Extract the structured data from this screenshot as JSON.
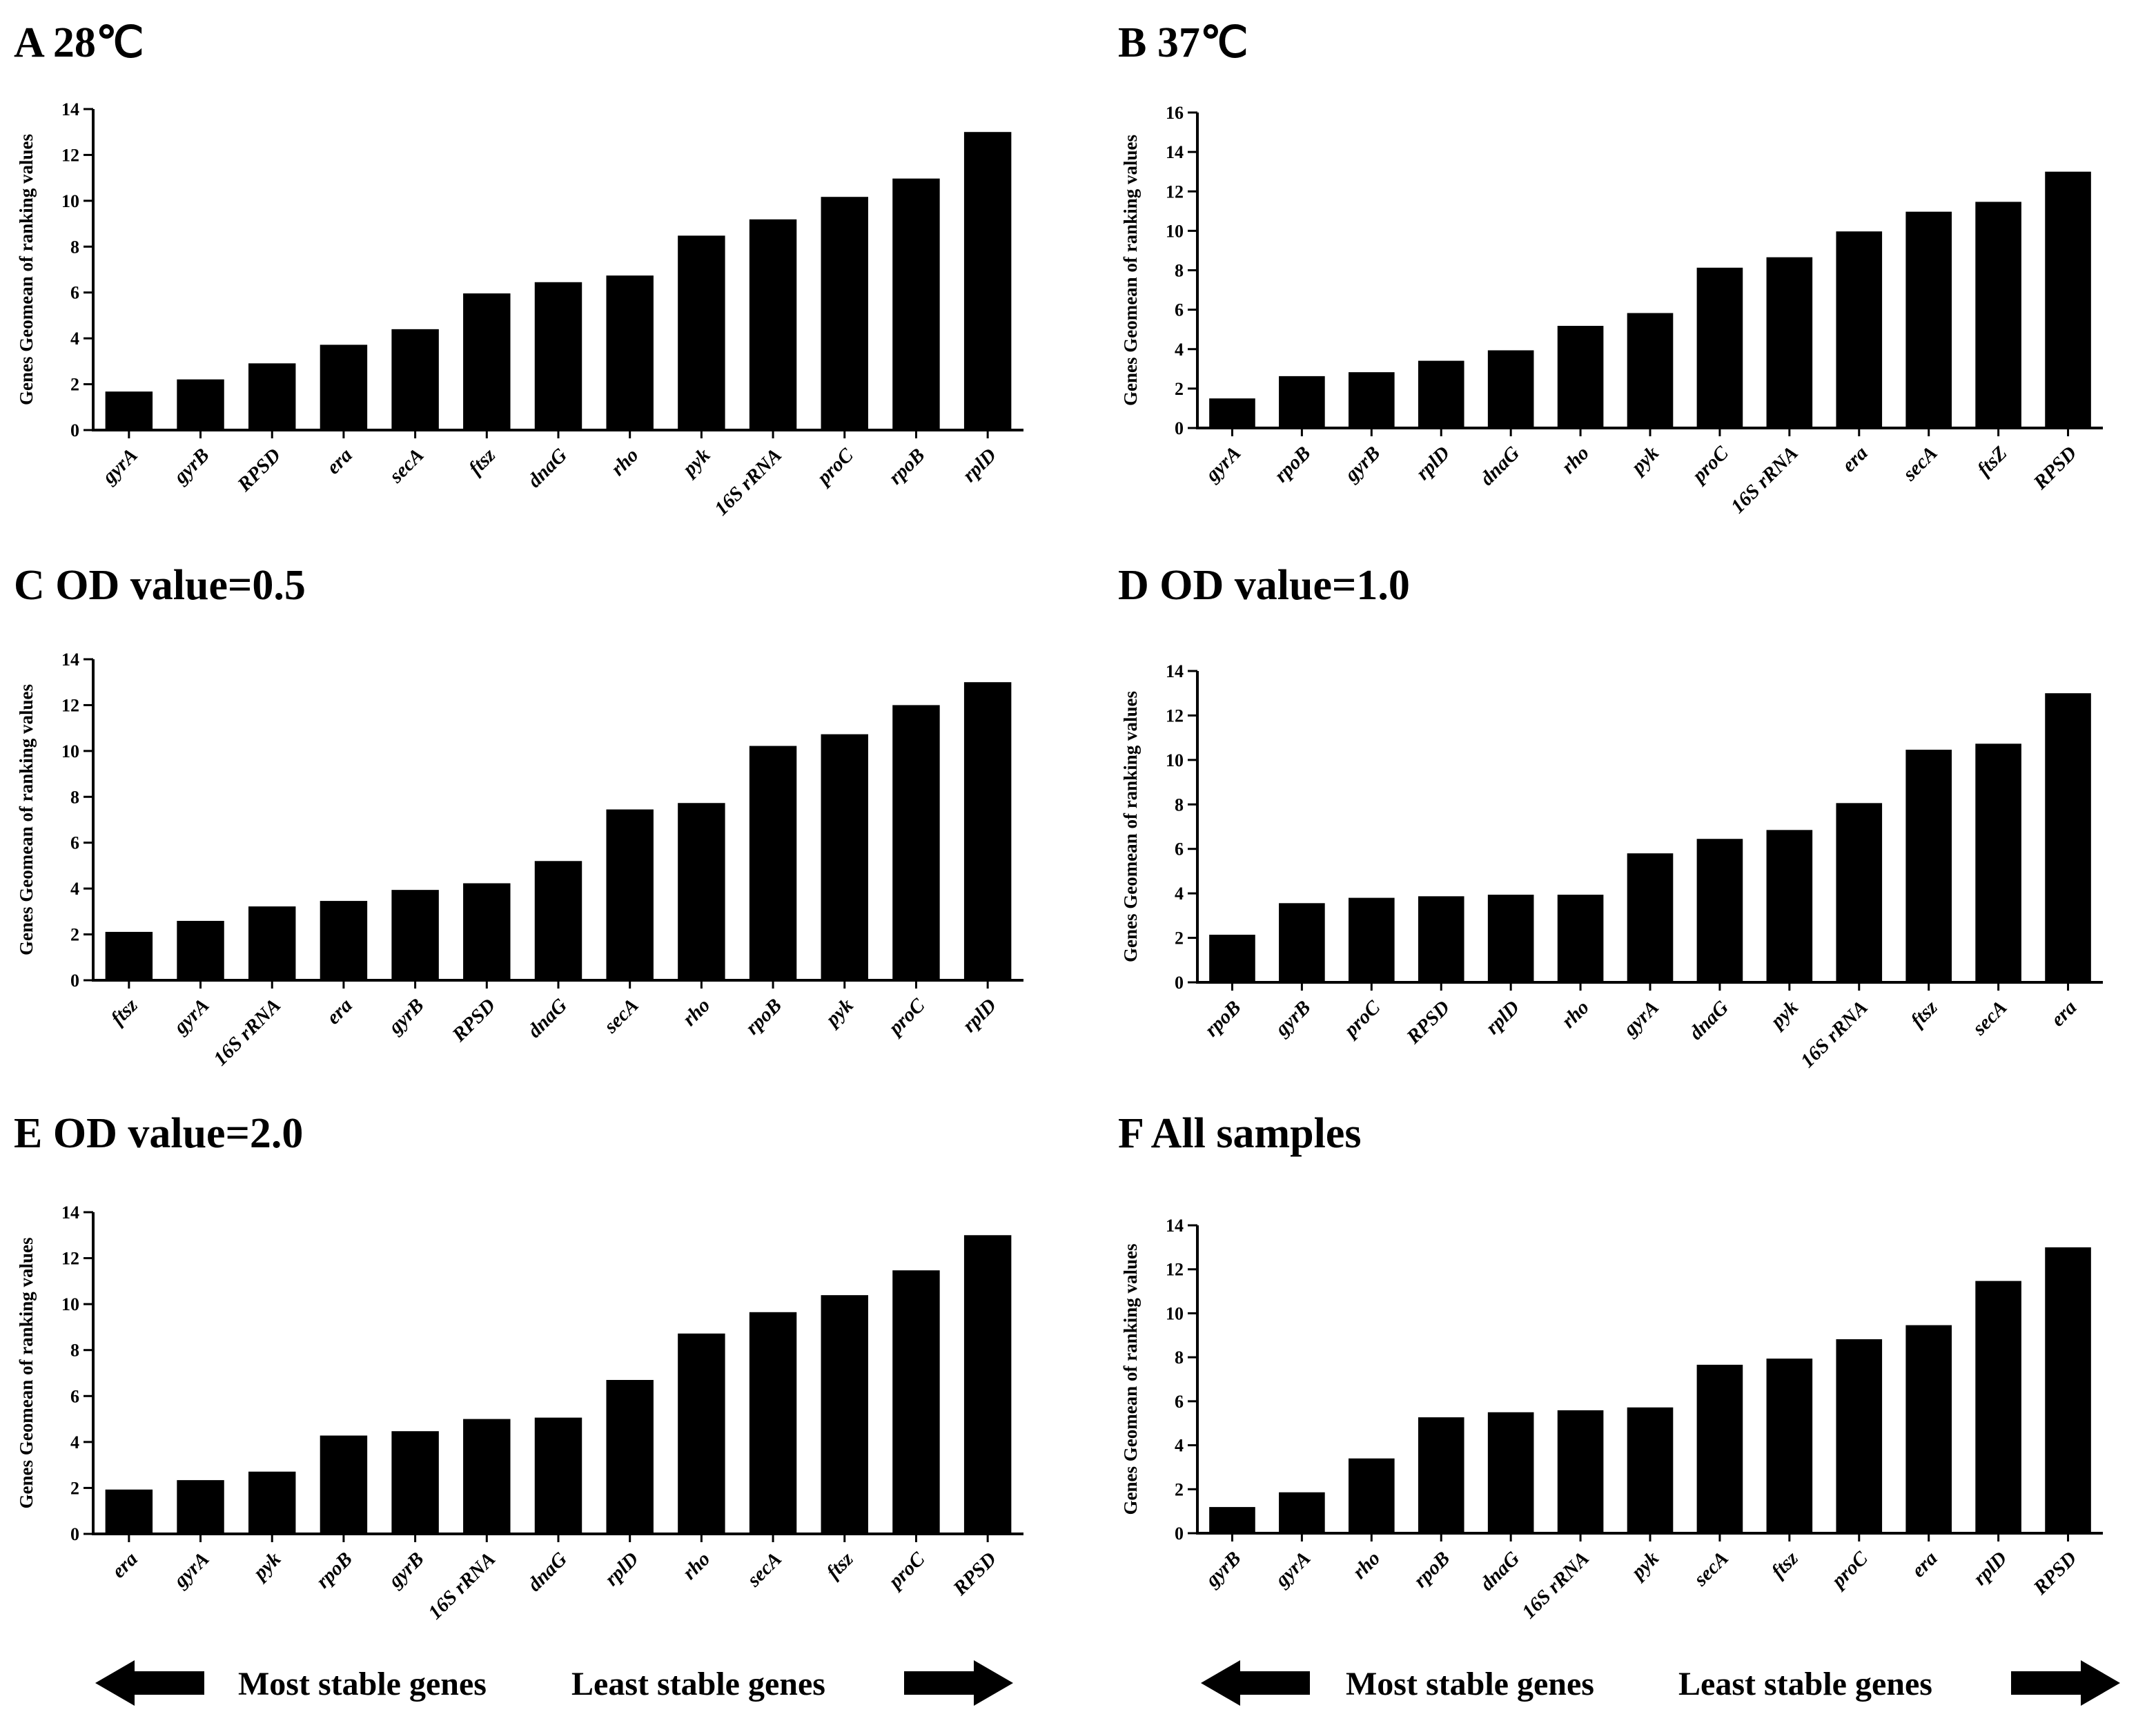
{
  "colors": {
    "bar": "#000000",
    "axis": "#000000",
    "background": "#ffffff"
  },
  "chart_data": [
    {
      "panel": "A",
      "title": "A  28℃",
      "type": "bar",
      "ylabel": "Genes Geomean of ranking values",
      "xlabel": "",
      "ylim": [
        0,
        14
      ],
      "yticks": [
        0,
        2,
        4,
        6,
        8,
        10,
        12,
        14
      ],
      "categories": [
        "gyrA",
        "gyrB",
        "RPSD",
        "era",
        "secA",
        "ftsz",
        "dnaG",
        "rho",
        "pyk",
        "16S rRNA",
        "proC",
        "rpoB",
        "rplD"
      ],
      "values": [
        1.68,
        2.21,
        2.91,
        3.72,
        4.4,
        5.96,
        6.45,
        6.74,
        8.48,
        9.19,
        10.17,
        10.97,
        13.0
      ]
    },
    {
      "panel": "B",
      "title": "B  37℃",
      "type": "bar",
      "ylabel": "Genes Geomean of ranking values",
      "xlabel": "",
      "ylim": [
        0,
        16
      ],
      "yticks": [
        0,
        2,
        4,
        6,
        8,
        10,
        12,
        14,
        16
      ],
      "categories": [
        "gyrA",
        "rpoB",
        "gyrB",
        "rplD",
        "dnaG",
        "rho",
        "pyk",
        "proC",
        "16S rRNA",
        "era",
        "secA",
        "ftsZ",
        "RPSD"
      ],
      "values": [
        1.5,
        2.63,
        2.83,
        3.41,
        3.94,
        5.18,
        5.83,
        8.13,
        8.66,
        9.97,
        10.97,
        11.47,
        13.0
      ]
    },
    {
      "panel": "C",
      "title": "C  OD value=0.5",
      "type": "bar",
      "ylabel": "Genes Geomean of ranking values",
      "xlabel": "",
      "ylim": [
        0,
        14
      ],
      "yticks": [
        0,
        2,
        4,
        6,
        8,
        10,
        12,
        14
      ],
      "categories": [
        "ftsz",
        "gyrA",
        "16S rRNA",
        "era",
        "gyrB",
        "RPSD",
        "dnaG",
        "secA",
        "rho",
        "rpoB",
        "pyk",
        "proC",
        "rplD"
      ],
      "values": [
        2.11,
        2.59,
        3.22,
        3.46,
        3.94,
        4.23,
        5.2,
        7.45,
        7.73,
        10.22,
        10.73,
        12.0,
        13.0
      ]
    },
    {
      "panel": "D",
      "title": "D  OD value=1.0",
      "type": "bar",
      "ylabel": "Genes Geomean of ranking values",
      "xlabel": "",
      "ylim": [
        0,
        14
      ],
      "yticks": [
        0,
        2,
        4,
        6,
        8,
        10,
        12,
        14
      ],
      "categories": [
        "rpoB",
        "gyrB",
        "proC",
        "RPSD",
        "rplD",
        "rho",
        "gyrA",
        "dnaG",
        "pyk",
        "16S rRNA",
        "ftsz",
        "secA",
        "era"
      ],
      "values": [
        2.14,
        3.56,
        3.8,
        3.87,
        3.94,
        3.94,
        5.8,
        6.45,
        6.85,
        8.06,
        10.46,
        10.73,
        13.0
      ]
    },
    {
      "panel": "E",
      "title": "E  OD value=2.0",
      "type": "bar",
      "ylabel": "Genes Geomean of ranking values",
      "xlabel": "",
      "ylim": [
        0,
        14
      ],
      "yticks": [
        0,
        2,
        4,
        6,
        8,
        10,
        12,
        14
      ],
      "categories": [
        "era",
        "gyrA",
        "pyk",
        "rpoB",
        "gyrB",
        "16S rRNA",
        "dnaG",
        "rplD",
        "rho",
        "secA",
        "ftsz",
        "proC",
        "RPSD"
      ],
      "values": [
        1.93,
        2.34,
        2.71,
        4.28,
        4.47,
        5.0,
        5.06,
        6.7,
        8.72,
        9.65,
        10.39,
        11.47,
        13.0
      ]
    },
    {
      "panel": "F",
      "title": "F  All samples",
      "type": "bar",
      "ylabel": "Genes Geomean of ranking values",
      "xlabel": "",
      "ylim": [
        0,
        14
      ],
      "yticks": [
        0,
        2,
        4,
        6,
        8,
        10,
        12,
        14
      ],
      "categories": [
        "gyrB",
        "gyrA",
        "rho",
        "rpoB",
        "dnaG",
        "16S rRNA",
        "pyk",
        "secA",
        "ftsz",
        "proC",
        "era",
        "rplD",
        "RPSD"
      ],
      "values": [
        1.19,
        1.86,
        3.4,
        5.27,
        5.5,
        5.59,
        5.72,
        7.66,
        7.94,
        8.82,
        9.46,
        11.47,
        13.0
      ]
    }
  ],
  "footer": {
    "left": {
      "most_stable": "Most stable genes",
      "least_stable": "Least stable genes"
    },
    "right": {
      "most_stable": "Most stable genes",
      "least_stable": "Least stable genes"
    }
  }
}
